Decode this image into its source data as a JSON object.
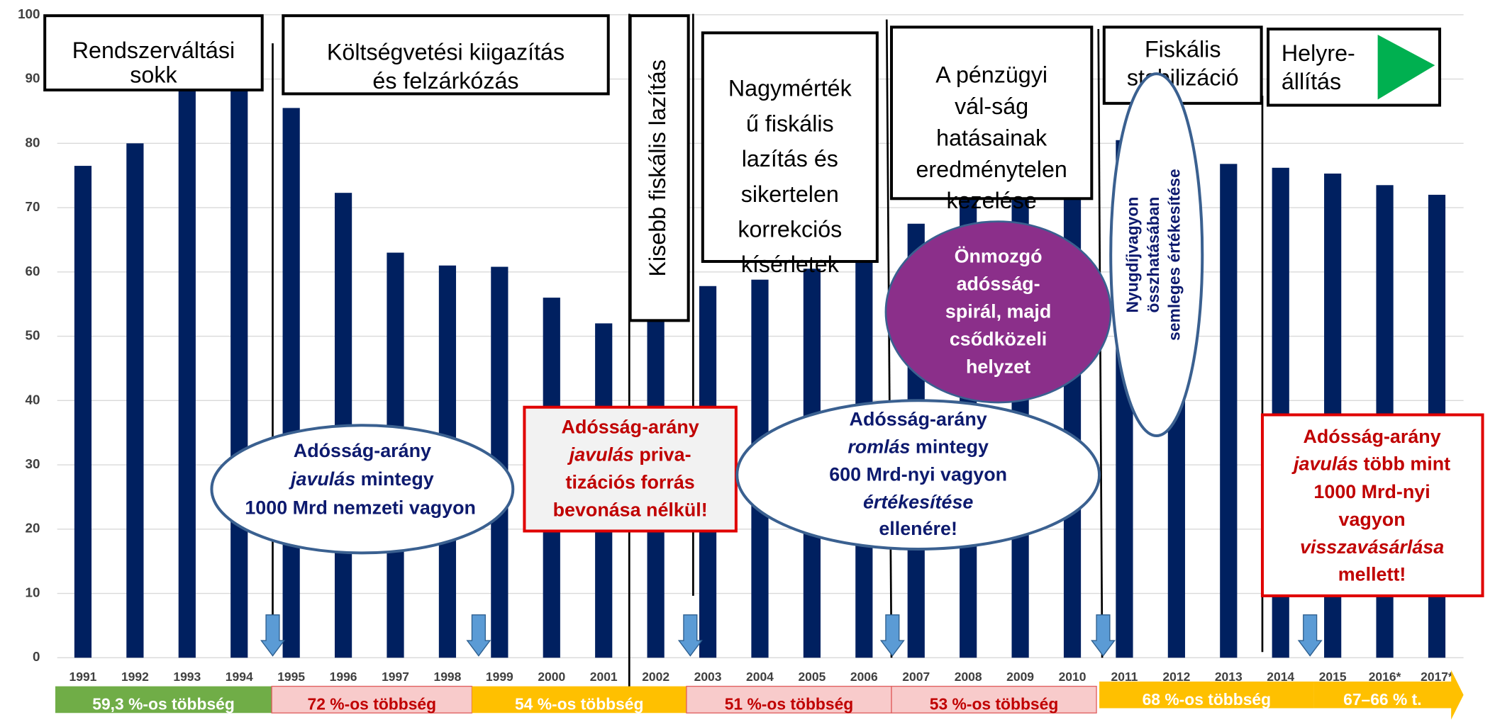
{
  "chart_data": {
    "type": "bar",
    "categories": [
      "1991",
      "1992",
      "1993",
      "1994",
      "1995",
      "1996",
      "1997",
      "1998",
      "1999",
      "2000",
      "2001",
      "2002",
      "2003",
      "2004",
      "2005",
      "2006",
      "2007",
      "2008",
      "2009",
      "2010",
      "2011",
      "2012",
      "2013",
      "2014",
      "2015",
      "2016*",
      "2017*"
    ],
    "values": [
      76.5,
      80,
      90.5,
      89,
      85.5,
      72.3,
      63,
      61,
      60.8,
      56,
      52,
      55,
      57.8,
      58.8,
      60.5,
      64.6,
      67.5,
      71.6,
      78,
      80.5,
      80.5,
      78.4,
      76.8,
      76.2,
      75.3,
      73.5,
      72
    ],
    "color": "#002060",
    "ylim": [
      0,
      100
    ],
    "yticks": [
      0,
      10,
      20,
      30,
      40,
      50,
      60,
      70,
      80,
      90,
      100
    ],
    "grid": true,
    "annotations": {
      "periods": [
        {
          "lines": [
            "Rendszerváltási",
            "sokk"
          ]
        },
        {
          "lines": [
            "Költségvetési kiigazítás",
            "és felzárkózás"
          ]
        },
        {
          "lines": [
            "Kisebb fiskális lazítás"
          ]
        },
        {
          "lines": [
            "Nagymérték",
            "ű fiskális",
            "lazítás és",
            "sikertelen",
            "korrekciós",
            "kísérletek"
          ]
        },
        {
          "lines": [
            "A pénzügyi",
            "vál-ság",
            "hatásainak",
            "eredménytelen",
            "kezelése"
          ]
        },
        {
          "lines": [
            "Fiskális",
            "stabilizáció"
          ]
        },
        {
          "lines": [
            "Helyre-",
            "állítás"
          ]
        }
      ],
      "notes": [
        {
          "lines": [
            "Adósság-arány",
            "javulás",
            " mintegy",
            "1000 Mrd nemzeti vagyon"
          ]
        },
        {
          "lines": [
            "Adósság-arány",
            "javulás",
            " priva-",
            "tizációs forrás",
            "bevonása nélkül!"
          ]
        },
        {
          "lines": [
            "Adósság-arány",
            "romlás",
            " mintegy",
            "600 Mrd-nyi vagyon",
            "értékesítése",
            "ellenére!"
          ]
        },
        {
          "lines": [
            "Önmozgó",
            "adósság-",
            "spirál, majd",
            "csődközeli",
            "helyzet"
          ]
        },
        {
          "lines": [
            "Nyugdíjvagyon",
            "összhatásában",
            "semleges értékesítése"
          ]
        },
        {
          "lines": [
            "Adósság-arány",
            "javulás",
            " több mint",
            "1000 Mrd-nyi",
            "vagyon",
            "visszavásárlása",
            "mellett!"
          ]
        }
      ],
      "majorities": [
        {
          "label": "59,3 %-os többség",
          "color": "#70ad47"
        },
        {
          "label": "72 %-os többség",
          "color": "#f8cbcb"
        },
        {
          "label": "54 %-os többség",
          "color": "#ffc000"
        },
        {
          "label": "51 %-os többség",
          "color": "#f8cbcb"
        },
        {
          "label": "53 %-os többség",
          "color": "#f8cbcb"
        },
        {
          "label": "68 %-os többség",
          "color": "#ffc000"
        },
        {
          "label": "67–66 % t.",
          "color": "#ffc000"
        }
      ]
    }
  }
}
